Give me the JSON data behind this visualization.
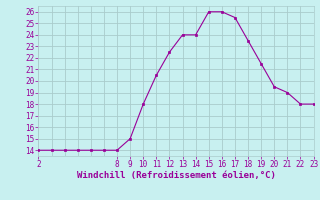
{
  "x": [
    2,
    3,
    4,
    5,
    6,
    7,
    8,
    9,
    10,
    11,
    12,
    13,
    14,
    15,
    16,
    17,
    18,
    19,
    20,
    21,
    22,
    23
  ],
  "y": [
    14,
    14,
    14,
    14,
    14,
    14,
    14,
    15,
    18,
    20.5,
    22.5,
    24,
    24,
    26,
    26,
    25.5,
    23.5,
    21.5,
    19.5,
    19,
    18,
    18
  ],
  "line_color": "#990099",
  "marker": "s",
  "marker_size": 2.0,
  "bg_color": "#c8f0f0",
  "grid_color": "#aacccc",
  "xlabel": "Windchill (Refroidissement éolien,°C)",
  "xlabel_color": "#990099",
  "tick_color": "#990099",
  "xlim": [
    2,
    23
  ],
  "ylim": [
    13.5,
    26.5
  ],
  "xticks": [
    2,
    8,
    9,
    10,
    11,
    12,
    13,
    14,
    15,
    16,
    17,
    18,
    19,
    20,
    21,
    22,
    23
  ],
  "yticks": [
    14,
    15,
    16,
    17,
    18,
    19,
    20,
    21,
    22,
    23,
    24,
    25,
    26
  ],
  "tick_fontsize": 5.5,
  "xlabel_fontsize": 6.5
}
